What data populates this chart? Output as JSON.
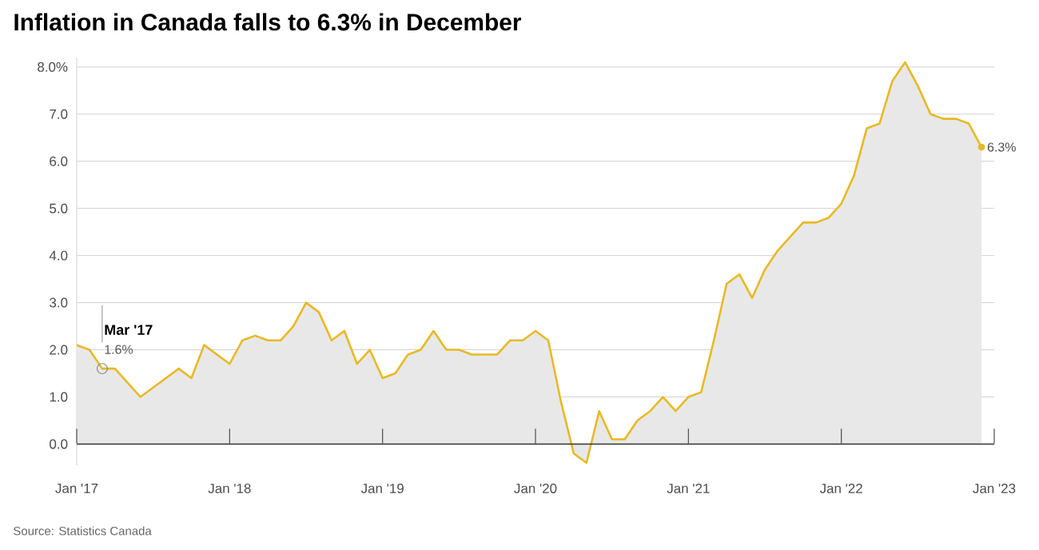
{
  "chart_data": {
    "type": "area",
    "title": "Inflation in Canada falls to 6.3% in December",
    "x": [
      "2017-01",
      "2017-02",
      "2017-03",
      "2017-04",
      "2017-05",
      "2017-06",
      "2017-07",
      "2017-08",
      "2017-09",
      "2017-10",
      "2017-11",
      "2017-12",
      "2018-01",
      "2018-02",
      "2018-03",
      "2018-04",
      "2018-05",
      "2018-06",
      "2018-07",
      "2018-08",
      "2018-09",
      "2018-10",
      "2018-11",
      "2018-12",
      "2019-01",
      "2019-02",
      "2019-03",
      "2019-04",
      "2019-05",
      "2019-06",
      "2019-07",
      "2019-08",
      "2019-09",
      "2019-10",
      "2019-11",
      "2019-12",
      "2020-01",
      "2020-02",
      "2020-03",
      "2020-04",
      "2020-05",
      "2020-06",
      "2020-07",
      "2020-08",
      "2020-09",
      "2020-10",
      "2020-11",
      "2020-12",
      "2021-01",
      "2021-02",
      "2021-03",
      "2021-04",
      "2021-05",
      "2021-06",
      "2021-07",
      "2021-08",
      "2021-09",
      "2021-10",
      "2021-11",
      "2021-12",
      "2022-01",
      "2022-02",
      "2022-03",
      "2022-04",
      "2022-05",
      "2022-06",
      "2022-07",
      "2022-08",
      "2022-09",
      "2022-10",
      "2022-11",
      "2022-12"
    ],
    "values": [
      2.1,
      2.0,
      1.6,
      1.6,
      1.3,
      1.0,
      1.2,
      1.4,
      1.6,
      1.4,
      2.1,
      1.9,
      1.7,
      2.2,
      2.3,
      2.2,
      2.2,
      2.5,
      3.0,
      2.8,
      2.2,
      2.4,
      1.7,
      2.0,
      1.4,
      1.5,
      1.9,
      2.0,
      2.4,
      2.0,
      2.0,
      1.9,
      1.9,
      1.9,
      2.2,
      2.2,
      2.4,
      2.2,
      0.9,
      -0.2,
      -0.4,
      0.7,
      0.1,
      0.1,
      0.5,
      0.7,
      1.0,
      0.7,
      1.0,
      1.1,
      2.2,
      3.4,
      3.6,
      3.1,
      3.7,
      4.1,
      4.4,
      4.7,
      4.7,
      4.8,
      5.1,
      5.7,
      6.7,
      6.8,
      7.7,
      8.1,
      7.6,
      7.0,
      6.9,
      6.9,
      6.8,
      6.3
    ],
    "color": "#e8b923",
    "xlim": [
      "2017-01",
      "2023-01"
    ],
    "xticks": [
      {
        "value": "2017-01",
        "label": "Jan '17"
      },
      {
        "value": "2018-01",
        "label": "Jan '18"
      },
      {
        "value": "2019-01",
        "label": "Jan '19"
      },
      {
        "value": "2020-01",
        "label": "Jan '20"
      },
      {
        "value": "2021-01",
        "label": "Jan '21"
      },
      {
        "value": "2022-01",
        "label": "Jan '22"
      },
      {
        "value": "2023-01",
        "label": "Jan '23"
      }
    ],
    "yticks": [
      {
        "value": 0,
        "label": "0.0"
      },
      {
        "value": 1,
        "label": "1.0"
      },
      {
        "value": 2,
        "label": "2.0"
      },
      {
        "value": 3,
        "label": "3.0"
      },
      {
        "value": 4,
        "label": "4.0"
      },
      {
        "value": 5,
        "label": "5.0"
      },
      {
        "value": 6,
        "label": "6.0"
      },
      {
        "value": 7,
        "label": "7.0"
      },
      {
        "value": 8,
        "label": "8.0%"
      }
    ],
    "ylim": [
      -0.45,
      8.2
    ],
    "grid": "y",
    "annotations": [
      {
        "text": "**Mar '17**",
        "x": "2017-03",
        "y": 1.6
      },
      {
        "text": "1.6%",
        "x": "2017-03",
        "y": 1.6
      },
      {
        "text": "6.3%",
        "x": "2022-12",
        "y": 6.3
      },
      "Source: Statistics Canada"
    ]
  }
}
